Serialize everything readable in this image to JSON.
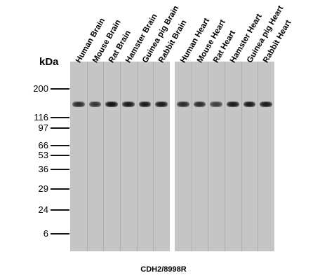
{
  "unit_label": "kDa",
  "markers": [
    {
      "label": "200",
      "kda": 200
    },
    {
      "label": "116",
      "kda": 116
    },
    {
      "label": "97",
      "kda": 97
    },
    {
      "label": "66",
      "kda": 66
    },
    {
      "label": "53",
      "kda": 53
    },
    {
      "label": "36",
      "kda": 36
    },
    {
      "label": "29",
      "kda": 29
    },
    {
      "label": "24",
      "kda": 24
    },
    {
      "label": "6",
      "kda": 6
    }
  ],
  "panels": [
    {
      "lanes": [
        {
          "label": "Human Brain",
          "intensity": 0.85
        },
        {
          "label": "Mouse Brain",
          "intensity": 0.8
        },
        {
          "label": "Rat Brain",
          "intensity": 1.0
        },
        {
          "label": "Hamster Brain",
          "intensity": 0.95
        },
        {
          "label": "Guinea pig Brain",
          "intensity": 0.95
        },
        {
          "label": "Rabbit Brain",
          "intensity": 0.95
        }
      ]
    },
    {
      "lanes": [
        {
          "label": "Human Heart",
          "intensity": 0.85
        },
        {
          "label": "Mouse Heart",
          "intensity": 0.85
        },
        {
          "label": "Rat Heart",
          "intensity": 0.75
        },
        {
          "label": "Hamster Heart",
          "intensity": 0.95
        },
        {
          "label": "Guinea pig Heart",
          "intensity": 0.95
        },
        {
          "label": "Rabbit Heart",
          "intensity": 0.95
        }
      ]
    }
  ],
  "caption": "CDH2/8998R"
}
